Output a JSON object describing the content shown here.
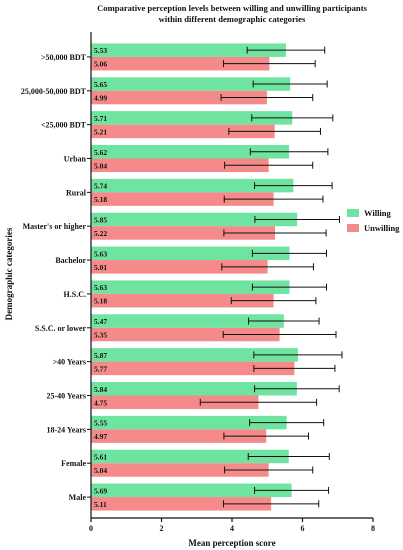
{
  "colors": {
    "willing": "#6fe3a0",
    "unwilling": "#f58a8a",
    "axis": "#111111"
  },
  "chart_data": {
    "type": "bar",
    "orientation": "horizontal",
    "title_lines": [
      "Comparative perception levels between willing and unwilling participants",
      "within different demographic categories"
    ],
    "xlabel": "Mean perception score",
    "ylabel": "Demographic categories",
    "xlim": [
      0,
      8
    ],
    "xticks": [
      0,
      2,
      4,
      6,
      8
    ],
    "legend_position": "right",
    "grid": false,
    "categories": [
      ">50,000 BDT",
      "25,000-50,000 BDT",
      "<25,000 BDT",
      "Urban",
      "Rural",
      "Master's or higher",
      "Bachelor",
      "H.S.C.",
      "S.S.C. or lower",
      ">40 Years",
      "25-40 Years",
      "18-24 Years",
      "Female",
      "Male"
    ],
    "series": [
      {
        "name": "Willing",
        "color": "#6fe3a0",
        "values": [
          5.53,
          5.65,
          5.71,
          5.62,
          5.74,
          5.85,
          5.63,
          5.63,
          5.47,
          5.87,
          5.84,
          5.55,
          5.61,
          5.69
        ],
        "value_labels": [
          "5.53",
          "5.65",
          "5.71",
          "5.62",
          "5.74",
          "5.85",
          "5.63",
          "5.63",
          "5.47",
          "5.87",
          "5.84",
          "5.55",
          "5.61",
          "5.69"
        ],
        "error": [
          1.1,
          1.05,
          1.15,
          1.1,
          1.1,
          1.2,
          1.05,
          1.05,
          1.0,
          1.25,
          1.2,
          1.05,
          1.15,
          1.05
        ]
      },
      {
        "name": "Unwilling",
        "color": "#f58a8a",
        "values": [
          5.06,
          4.99,
          5.21,
          5.04,
          5.18,
          5.22,
          5.01,
          5.18,
          5.35,
          5.77,
          4.75,
          4.97,
          5.04,
          5.11
        ],
        "value_labels": [
          "5.06",
          "4.99",
          "5.21",
          "5.04",
          "5.18",
          "5.22",
          "5.01",
          "5.18",
          "5.35",
          "5.77",
          "4.75",
          "4.97",
          "5.04",
          "5.11"
        ],
        "error": [
          1.3,
          1.3,
          1.3,
          1.25,
          1.4,
          1.45,
          1.3,
          1.2,
          1.6,
          1.15,
          1.65,
          1.2,
          1.25,
          1.35
        ]
      }
    ]
  }
}
